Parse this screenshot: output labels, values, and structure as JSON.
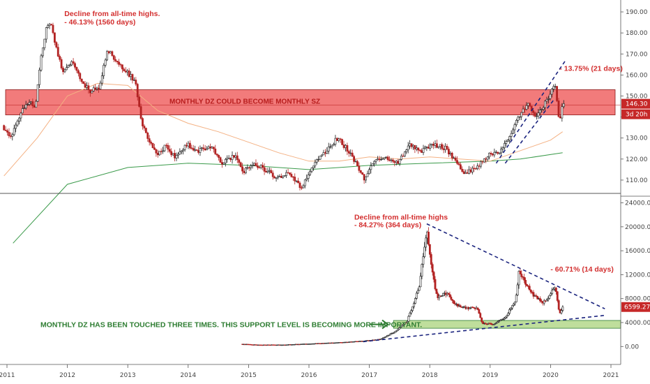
{
  "chart_data": [
    {
      "type": "candlestick",
      "panel": "top",
      "x_ticks": [
        "2011",
        "2012",
        "2013",
        "2014",
        "2015",
        "2016",
        "2017",
        "2018",
        "2019",
        "2020",
        "2021"
      ],
      "ylim": [
        104,
        194
      ],
      "y_ticks": [
        "190.00",
        "180.00",
        "170.00",
        "160.00",
        "150.00",
        "140.00",
        "130.00",
        "120.00",
        "110.00"
      ],
      "y_tick_values": [
        190,
        180,
        170,
        160,
        150,
        140,
        130,
        120,
        110
      ],
      "path_points": [
        [
          2010.95,
          136
        ],
        [
          2011.1,
          130
        ],
        [
          2011.25,
          142
        ],
        [
          2011.4,
          147
        ],
        [
          2011.5,
          145
        ],
        [
          2011.6,
          170
        ],
        [
          2011.68,
          182
        ],
        [
          2011.75,
          185
        ],
        [
          2011.85,
          172
        ],
        [
          2011.95,
          162
        ],
        [
          2012.1,
          166
        ],
        [
          2012.25,
          158
        ],
        [
          2012.4,
          152
        ],
        [
          2012.55,
          154
        ],
        [
          2012.7,
          172
        ],
        [
          2012.85,
          166
        ],
        [
          2013.0,
          162
        ],
        [
          2013.15,
          157
        ],
        [
          2013.25,
          138
        ],
        [
          2013.35,
          130
        ],
        [
          2013.5,
          122
        ],
        [
          2013.65,
          126
        ],
        [
          2013.8,
          121
        ],
        [
          2014.0,
          127
        ],
        [
          2014.2,
          124
        ],
        [
          2014.4,
          126
        ],
        [
          2014.6,
          118
        ],
        [
          2014.8,
          122
        ],
        [
          2014.95,
          114
        ],
        [
          2015.1,
          118
        ],
        [
          2015.3,
          115
        ],
        [
          2015.5,
          111
        ],
        [
          2015.7,
          114
        ],
        [
          2015.9,
          106
        ],
        [
          2016.0,
          112
        ],
        [
          2016.15,
          120
        ],
        [
          2016.3,
          123
        ],
        [
          2016.5,
          130
        ],
        [
          2016.65,
          125
        ],
        [
          2016.8,
          118
        ],
        [
          2016.95,
          110
        ],
        [
          2017.1,
          119
        ],
        [
          2017.3,
          121
        ],
        [
          2017.5,
          118
        ],
        [
          2017.7,
          127
        ],
        [
          2017.9,
          124
        ],
        [
          2018.1,
          127
        ],
        [
          2018.3,
          125
        ],
        [
          2018.45,
          119
        ],
        [
          2018.6,
          113
        ],
        [
          2018.8,
          116
        ],
        [
          2019.0,
          122
        ],
        [
          2019.2,
          124
        ],
        [
          2019.35,
          130
        ],
        [
          2019.5,
          140
        ],
        [
          2019.65,
          146
        ],
        [
          2019.8,
          140
        ],
        [
          2019.9,
          145
        ],
        [
          2020.0,
          150
        ],
        [
          2020.1,
          156
        ],
        [
          2020.18,
          136
        ],
        [
          2020.22,
          146
        ]
      ],
      "ma_long": [
        [
          2011.1,
          80
        ],
        [
          2012.0,
          108
        ],
        [
          2013.0,
          116
        ],
        [
          2014.0,
          118
        ],
        [
          2015.0,
          117
        ],
        [
          2016.0,
          115
        ],
        [
          2017.0,
          117
        ],
        [
          2018.0,
          118
        ],
        [
          2019.0,
          119
        ],
        [
          2019.5,
          120
        ],
        [
          2020.2,
          123
        ]
      ],
      "ma_short": [
        [
          2010.95,
          112
        ],
        [
          2011.5,
          130
        ],
        [
          2012.0,
          150
        ],
        [
          2012.5,
          156
        ],
        [
          2013.0,
          155
        ],
        [
          2013.5,
          143
        ],
        [
          2014.0,
          137
        ],
        [
          2014.5,
          133
        ],
        [
          2015.0,
          128
        ],
        [
          2015.5,
          123
        ],
        [
          2016.0,
          119
        ],
        [
          2016.5,
          119
        ],
        [
          2017.0,
          121
        ],
        [
          2017.5,
          120
        ],
        [
          2018.0,
          121
        ],
        [
          2018.5,
          120
        ],
        [
          2019.0,
          119
        ],
        [
          2019.5,
          124
        ],
        [
          2020.0,
          129
        ],
        [
          2020.2,
          133
        ]
      ],
      "zone": {
        "label": "MONTHLY DZ COULD BECOME MONTHLY SZ",
        "y_low": 141,
        "y_high": 153,
        "color": "#f06464"
      },
      "trendlines": [
        {
          "points": [
            [
              2019.1,
              118
            ],
            [
              2020.25,
              167
            ]
          ]
        },
        {
          "points": [
            [
              2019.25,
              118
            ],
            [
              2020.05,
              148
            ]
          ]
        }
      ],
      "annotations": [
        {
          "text": "Decline from all-time highs.",
          "x": 2011.95,
          "y": 188
        },
        {
          "text": "- 46.13% (1560 days)",
          "x": 2011.95,
          "y": 184
        },
        {
          "text": "- 13.75% (21 days)",
          "x": 2020.15,
          "y": 162
        }
      ],
      "price_badge": {
        "value": "146.30",
        "sub": "3d 20h"
      }
    },
    {
      "type": "candlestick",
      "panel": "bottom",
      "x_ticks": [
        "2011",
        "2012",
        "2013",
        "2014",
        "2015",
        "2016",
        "2017",
        "2018",
        "2019",
        "2020",
        "2021"
      ],
      "ylim": [
        -3000,
        25000
      ],
      "y_ticks": [
        "24000.00",
        "20000.00",
        "16000.00",
        "12000.00",
        "8000.00",
        "4000.00",
        "0.00"
      ],
      "y_tick_values": [
        24000,
        20000,
        16000,
        12000,
        8000,
        4000,
        0
      ],
      "path_points": [
        [
          2014.9,
          400
        ],
        [
          2015.2,
          250
        ],
        [
          2015.6,
          280
        ],
        [
          2016.0,
          430
        ],
        [
          2016.5,
          650
        ],
        [
          2016.9,
          900
        ],
        [
          2017.2,
          1200
        ],
        [
          2017.45,
          2500
        ],
        [
          2017.65,
          4300
        ],
        [
          2017.85,
          10000
        ],
        [
          2017.97,
          19500
        ],
        [
          2018.05,
          13000
        ],
        [
          2018.15,
          8000
        ],
        [
          2018.3,
          9000
        ],
        [
          2018.45,
          7000
        ],
        [
          2018.6,
          6500
        ],
        [
          2018.8,
          6400
        ],
        [
          2018.9,
          3800
        ],
        [
          2019.1,
          3700
        ],
        [
          2019.3,
          5200
        ],
        [
          2019.45,
          8000
        ],
        [
          2019.5,
          12500
        ],
        [
          2019.6,
          10500
        ],
        [
          2019.75,
          8500
        ],
        [
          2019.9,
          7200
        ],
        [
          2020.0,
          8500
        ],
        [
          2020.1,
          10200
        ],
        [
          2020.17,
          5200
        ],
        [
          2020.22,
          6600
        ]
      ],
      "zone": {
        "y_low": 3050,
        "y_high": 4350,
        "x_start": 2017.4,
        "color": "#8bc34a"
      },
      "trendlines": [
        {
          "points": [
            [
              2016.9,
              800
            ],
            [
              2020.9,
              5200
            ]
          ]
        },
        {
          "points": [
            [
              2017.95,
              20500
            ],
            [
              2020.9,
              6300
            ]
          ]
        }
      ],
      "annotations": [
        {
          "text": "Decline from all-time highs",
          "x": 2016.75,
          "y": 21200
        },
        {
          "text": "- 84.27% (364 days)",
          "x": 2016.75,
          "y": 19900
        },
        {
          "text": "- 60.71% (14 days)",
          "x": 2020.0,
          "y": 12500
        }
      ],
      "note": "MONTHLY DZ HAS BEEN TOUCHED THREE TIMES. THIS SUPPORT LEVEL IS BECOMING MORE IMPORTANT.",
      "price_badge": {
        "value": "6599.27"
      }
    }
  ]
}
